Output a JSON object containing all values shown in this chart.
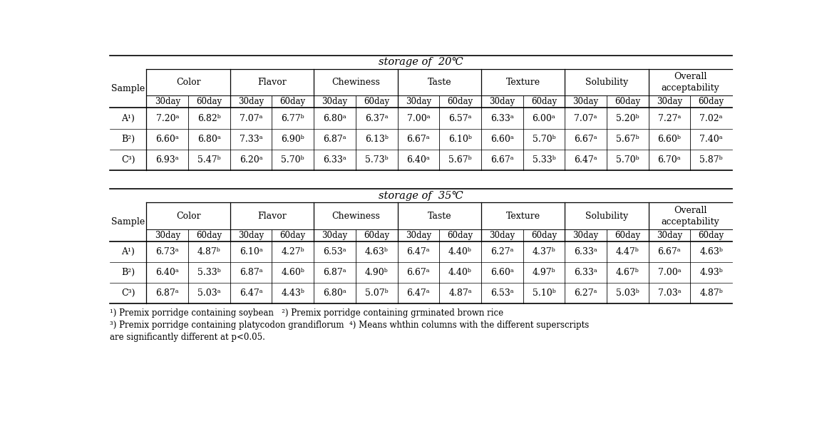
{
  "title1": "storage of  20℃",
  "title2": "storage of  35℃",
  "cat_labels": [
    "Color",
    "Flavor",
    "Chewiness",
    "Taste",
    "Texture",
    "Solubility",
    "Overall\nacceptability"
  ],
  "samples": [
    "A¹)",
    "B²)",
    "C³)"
  ],
  "table1_data": [
    [
      "7.20ᵃ",
      "6.82ᵇ",
      "7.07ᵃ",
      "6.77ᵇ",
      "6.80ᵃ",
      "6.37ᵃ",
      "7.00ᵃ",
      "6.57ᵃ",
      "6.33ᵃ",
      "6.00ᵃ",
      "7.07ᵃ",
      "5.20ᵇ",
      "7.27ᵃ",
      "7.02ᵃ"
    ],
    [
      "6.60ᵃ",
      "6.80ᵃ",
      "7.33ᵃ",
      "6.90ᵇ",
      "6.87ᵃ",
      "6.13ᵇ",
      "6.67ᵃ",
      "6.10ᵇ",
      "6.60ᵃ",
      "5.70ᵇ",
      "6.67ᵃ",
      "5.67ᵇ",
      "6.60ᵇ",
      "7.40ᵃ"
    ],
    [
      "6.93ᵃ",
      "5.47ᵇ",
      "6.20ᵃ",
      "5.70ᵇ",
      "6.33ᵃ",
      "5.73ᵇ",
      "6.40ᵃ",
      "5.67ᵇ",
      "6.67ᵃ",
      "5.33ᵇ",
      "6.47ᵃ",
      "5.70ᵇ",
      "6.70ᵃ",
      "5.87ᵇ"
    ]
  ],
  "table2_data": [
    [
      "6.73ᵃ",
      "4.87ᵇ",
      "6.10ᵃ",
      "4.27ᵇ",
      "6.53ᵃ",
      "4.63ᵇ",
      "6.47ᵃ",
      "4.40ᵇ",
      "6.27ᵃ",
      "4.37ᵇ",
      "6.33ᵃ",
      "4.47ᵇ",
      "6.67ᵃ",
      "4.63ᵇ"
    ],
    [
      "6.40ᵃ",
      "5.33ᵇ",
      "6.87ᵃ",
      "4.60ᵇ",
      "6.87ᵃ",
      "4.90ᵇ",
      "6.67ᵃ",
      "4.40ᵇ",
      "6.60ᵃ",
      "4.97ᵇ",
      "6.33ᵃ",
      "4.67ᵇ",
      "7.00ᵃ",
      "4.93ᵇ"
    ],
    [
      "6.87ᵃ",
      "5.03ᵃ",
      "6.47ᵃ",
      "4.43ᵇ",
      "6.80ᵃ",
      "5.07ᵇ",
      "6.47ᵃ",
      "4.87ᵃ",
      "6.53ᵃ",
      "5.10ᵇ",
      "6.27ᵃ",
      "5.03ᵇ",
      "7.03ᵃ",
      "4.87ᵇ"
    ]
  ],
  "footnote_line1": "¹) Premix porridge containing soybean   ²) Premix porridge containing grminated brown rice",
  "footnote_line2": "³) Premix porridge containing platycodon grandiflorum  ⁴) Means whthin columns with the different superscripts",
  "footnote_line3": "are significantly different at p<0.05.",
  "bg_color": "#ffffff",
  "fontsize": 9.0,
  "title_fontsize": 10.5,
  "footnote_fontsize": 8.5
}
